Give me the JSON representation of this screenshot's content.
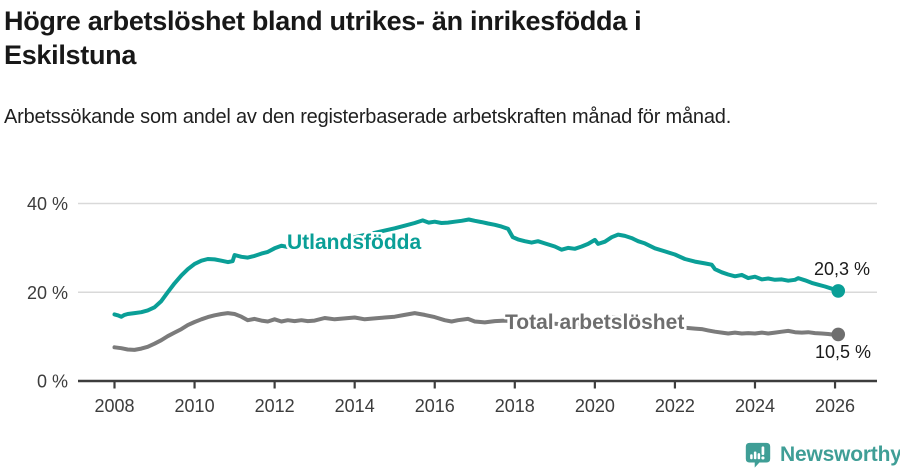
{
  "header": {
    "title": "Högre arbetslöshet bland utrikes- än inrikesfödda i Eskilstuna",
    "subtitle": "Arbetssökande som andel av den registerbaserade arbetskraften månad för månad."
  },
  "footer": {
    "brand": "Newsworthy",
    "logo_icon": "newsworthy-speech-bubble-bar-chart-icon",
    "brand_color": "#3f9e96"
  },
  "colors": {
    "background": "#ffffff",
    "title_text": "#181818",
    "axis_line": "#3d3d3d",
    "gridline": "#d9d9d9",
    "tick_label": "#3c3c3c",
    "value_label": "#1a1a1a"
  },
  "chart_data": {
    "type": "line",
    "title": "Högre arbetslöshet bland utrikes- än inrikesfödda i Eskilstuna",
    "subtitle": "Arbetssökande som andel av den registerbaserade arbetskraften månad för månad.",
    "grid": "horizontal",
    "legend_position": "inline-labels",
    "x_axis": {
      "ticks": [
        2008,
        2010,
        2012,
        2014,
        2016,
        2018,
        2020,
        2022,
        2024,
        2026
      ],
      "range": [
        2007.1,
        2027.05
      ]
    },
    "y_axis": {
      "ticks": [
        0,
        20,
        40
      ],
      "tick_labels": [
        "0 %",
        "20 %",
        "40 %"
      ],
      "range": [
        0,
        40
      ],
      "unit": "%"
    },
    "series": [
      {
        "name": "Utlandsfödda",
        "color": "#0a9f97",
        "label_color": "#0a9f97",
        "dot_color": "#0a9f97",
        "end_label": "20,3 %",
        "end_value": 20.3,
        "points": [
          [
            2008.0,
            15.0
          ],
          [
            2008.08,
            14.8
          ],
          [
            2008.17,
            14.5
          ],
          [
            2008.25,
            14.9
          ],
          [
            2008.33,
            15.1
          ],
          [
            2008.5,
            15.3
          ],
          [
            2008.67,
            15.5
          ],
          [
            2008.83,
            15.9
          ],
          [
            2009.0,
            16.6
          ],
          [
            2009.17,
            18.0
          ],
          [
            2009.33,
            20.0
          ],
          [
            2009.5,
            22.0
          ],
          [
            2009.67,
            23.8
          ],
          [
            2009.83,
            25.2
          ],
          [
            2010.0,
            26.4
          ],
          [
            2010.17,
            27.1
          ],
          [
            2010.33,
            27.5
          ],
          [
            2010.5,
            27.4
          ],
          [
            2010.67,
            27.1
          ],
          [
            2010.83,
            26.8
          ],
          [
            2010.95,
            27.0
          ],
          [
            2011.0,
            28.4
          ],
          [
            2011.17,
            28.0
          ],
          [
            2011.33,
            27.8
          ],
          [
            2011.5,
            28.2
          ],
          [
            2011.67,
            28.7
          ],
          [
            2011.83,
            29.1
          ],
          [
            2012.0,
            29.9
          ],
          [
            2012.17,
            30.5
          ],
          [
            2012.33,
            30.2
          ],
          [
            2012.5,
            30.4
          ],
          [
            2012.75,
            30.7
          ],
          [
            2013.0,
            31.0
          ],
          [
            2013.25,
            31.3
          ],
          [
            2013.5,
            31.6
          ],
          [
            2013.75,
            32.0
          ],
          [
            2014.0,
            32.4
          ],
          [
            2014.25,
            32.9
          ],
          [
            2014.5,
            33.4
          ],
          [
            2014.75,
            33.9
          ],
          [
            2015.0,
            34.4
          ],
          [
            2015.25,
            35.0
          ],
          [
            2015.5,
            35.6
          ],
          [
            2015.7,
            36.2
          ],
          [
            2015.85,
            35.7
          ],
          [
            2016.0,
            35.9
          ],
          [
            2016.17,
            35.6
          ],
          [
            2016.33,
            35.7
          ],
          [
            2016.5,
            35.9
          ],
          [
            2016.67,
            36.1
          ],
          [
            2016.85,
            36.4
          ],
          [
            2017.0,
            36.1
          ],
          [
            2017.17,
            35.8
          ],
          [
            2017.33,
            35.5
          ],
          [
            2017.5,
            35.2
          ],
          [
            2017.67,
            34.8
          ],
          [
            2017.83,
            34.3
          ],
          [
            2017.95,
            32.4
          ],
          [
            2018.08,
            31.9
          ],
          [
            2018.25,
            31.5
          ],
          [
            2018.42,
            31.2
          ],
          [
            2018.58,
            31.5
          ],
          [
            2018.75,
            31.0
          ],
          [
            2019.0,
            30.3
          ],
          [
            2019.17,
            29.6
          ],
          [
            2019.33,
            30.0
          ],
          [
            2019.5,
            29.8
          ],
          [
            2019.67,
            30.3
          ],
          [
            2019.83,
            30.9
          ],
          [
            2020.0,
            31.8
          ],
          [
            2020.08,
            30.9
          ],
          [
            2020.25,
            31.4
          ],
          [
            2020.42,
            32.4
          ],
          [
            2020.58,
            33.0
          ],
          [
            2020.75,
            32.7
          ],
          [
            2020.92,
            32.2
          ],
          [
            2021.08,
            31.5
          ],
          [
            2021.25,
            31.0
          ],
          [
            2021.5,
            29.9
          ],
          [
            2021.75,
            29.2
          ],
          [
            2022.0,
            28.5
          ],
          [
            2022.25,
            27.5
          ],
          [
            2022.5,
            26.9
          ],
          [
            2022.75,
            26.5
          ],
          [
            2022.92,
            26.2
          ],
          [
            2023.0,
            25.2
          ],
          [
            2023.17,
            24.5
          ],
          [
            2023.33,
            24.0
          ],
          [
            2023.5,
            23.6
          ],
          [
            2023.67,
            23.9
          ],
          [
            2023.83,
            23.2
          ],
          [
            2024.0,
            23.5
          ],
          [
            2024.17,
            22.9
          ],
          [
            2024.33,
            23.1
          ],
          [
            2024.5,
            22.8
          ],
          [
            2024.67,
            22.9
          ],
          [
            2024.83,
            22.6
          ],
          [
            2025.0,
            22.8
          ],
          [
            2025.08,
            23.2
          ],
          [
            2025.25,
            22.7
          ],
          [
            2025.42,
            22.1
          ],
          [
            2025.58,
            21.7
          ],
          [
            2025.75,
            21.3
          ],
          [
            2025.92,
            20.8
          ],
          [
            2026.08,
            20.3
          ]
        ]
      },
      {
        "name": "Total arbetslöshet",
        "color": "#7b7b7b",
        "label_color": "#6e6e6e",
        "dot_color": "#6e6e6e",
        "end_label": "10,5 %",
        "end_value": 10.5,
        "points": [
          [
            2008.0,
            7.6
          ],
          [
            2008.17,
            7.4
          ],
          [
            2008.33,
            7.1
          ],
          [
            2008.5,
            7.0
          ],
          [
            2008.67,
            7.3
          ],
          [
            2008.83,
            7.7
          ],
          [
            2009.0,
            8.4
          ],
          [
            2009.17,
            9.2
          ],
          [
            2009.33,
            10.1
          ],
          [
            2009.5,
            10.9
          ],
          [
            2009.67,
            11.7
          ],
          [
            2009.83,
            12.6
          ],
          [
            2010.0,
            13.3
          ],
          [
            2010.17,
            13.9
          ],
          [
            2010.33,
            14.4
          ],
          [
            2010.5,
            14.8
          ],
          [
            2010.67,
            15.1
          ],
          [
            2010.83,
            15.3
          ],
          [
            2011.0,
            15.1
          ],
          [
            2011.17,
            14.5
          ],
          [
            2011.33,
            13.7
          ],
          [
            2011.5,
            14.0
          ],
          [
            2011.67,
            13.6
          ],
          [
            2011.83,
            13.4
          ],
          [
            2012.0,
            13.9
          ],
          [
            2012.17,
            13.4
          ],
          [
            2012.33,
            13.7
          ],
          [
            2012.5,
            13.5
          ],
          [
            2012.67,
            13.7
          ],
          [
            2012.83,
            13.5
          ],
          [
            2013.0,
            13.6
          ],
          [
            2013.25,
            14.2
          ],
          [
            2013.5,
            13.9
          ],
          [
            2013.75,
            14.1
          ],
          [
            2014.0,
            14.3
          ],
          [
            2014.25,
            13.9
          ],
          [
            2014.5,
            14.1
          ],
          [
            2014.75,
            14.3
          ],
          [
            2015.0,
            14.5
          ],
          [
            2015.25,
            14.9
          ],
          [
            2015.5,
            15.3
          ],
          [
            2015.75,
            14.9
          ],
          [
            2016.0,
            14.4
          ],
          [
            2016.25,
            13.7
          ],
          [
            2016.42,
            13.4
          ],
          [
            2016.58,
            13.7
          ],
          [
            2016.83,
            14.0
          ],
          [
            2017.0,
            13.4
          ],
          [
            2017.25,
            13.2
          ],
          [
            2017.5,
            13.5
          ],
          [
            2017.75,
            13.6
          ],
          [
            2018.0,
            13.4
          ],
          [
            2018.25,
            13.2
          ],
          [
            2018.5,
            13.4
          ],
          [
            2018.75,
            13.1
          ],
          [
            2019.0,
            12.9
          ],
          [
            2019.25,
            12.7
          ],
          [
            2019.5,
            12.8
          ],
          [
            2019.75,
            13.0
          ],
          [
            2020.0,
            13.3
          ],
          [
            2020.25,
            14.0
          ],
          [
            2020.5,
            14.4
          ],
          [
            2020.75,
            14.1
          ],
          [
            2021.0,
            13.7
          ],
          [
            2021.25,
            13.3
          ],
          [
            2021.5,
            13.0
          ],
          [
            2021.75,
            12.7
          ],
          [
            2022.0,
            12.3
          ],
          [
            2022.25,
            12.0
          ],
          [
            2022.5,
            11.8
          ],
          [
            2022.67,
            11.7
          ],
          [
            2022.83,
            11.4
          ],
          [
            2023.0,
            11.1
          ],
          [
            2023.17,
            10.9
          ],
          [
            2023.33,
            10.7
          ],
          [
            2023.5,
            10.9
          ],
          [
            2023.67,
            10.7
          ],
          [
            2023.83,
            10.8
          ],
          [
            2024.0,
            10.7
          ],
          [
            2024.17,
            10.9
          ],
          [
            2024.33,
            10.7
          ],
          [
            2024.5,
            10.9
          ],
          [
            2024.67,
            11.1
          ],
          [
            2024.83,
            11.3
          ],
          [
            2025.0,
            11.0
          ],
          [
            2025.17,
            10.9
          ],
          [
            2025.33,
            11.0
          ],
          [
            2025.5,
            10.8
          ],
          [
            2025.67,
            10.7
          ],
          [
            2025.83,
            10.6
          ],
          [
            2026.0,
            10.4
          ],
          [
            2026.08,
            10.5
          ]
        ]
      }
    ]
  }
}
